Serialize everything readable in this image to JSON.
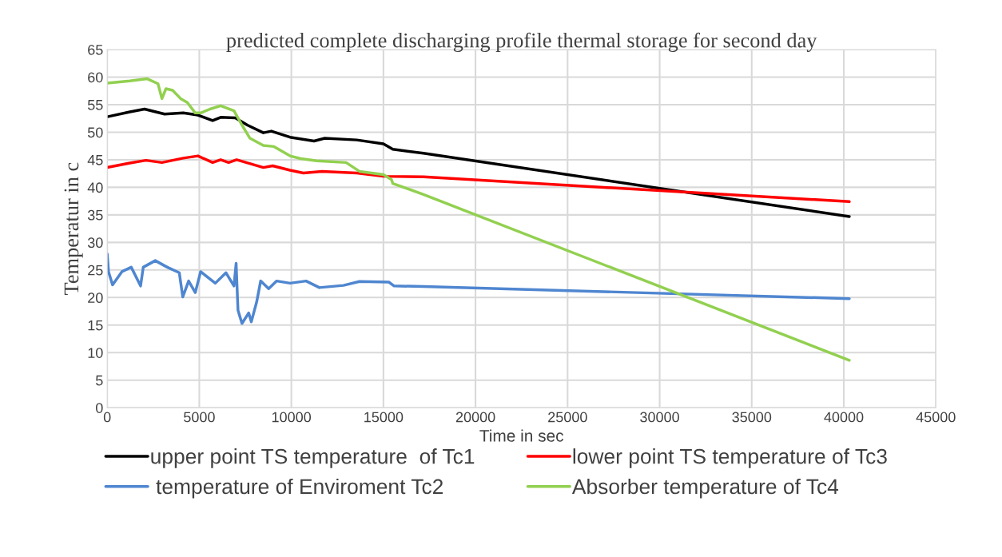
{
  "chart_data": {
    "type": "line",
    "title": "predicted complete discharging profile thermal storage for second day",
    "xlabel": "Time in sec",
    "ylabel": "Temperatur in c",
    "xlim": [
      0,
      45000
    ],
    "xticks": [
      0,
      5000,
      10000,
      15000,
      20000,
      25000,
      30000,
      35000,
      40000,
      45000
    ],
    "ylim": [
      0,
      65
    ],
    "yticks": [
      0,
      5,
      10,
      15,
      20,
      25,
      30,
      35,
      40,
      45,
      50,
      55,
      60,
      65
    ],
    "grid": true,
    "legend": "bottom",
    "marker": "none",
    "line_style": "solid",
    "series": [
      {
        "name": "upper point TS temperature  of Tc1",
        "color": "#000000",
        "x": [
          0,
          1232,
          2029,
          3116,
          4131,
          4928,
          5725,
          6160,
          6957,
          7609,
          8478,
          8913,
          9928,
          11233,
          11813,
          13552,
          15000,
          15509,
          17176,
          40300
        ],
        "values": [
          52.8,
          53.7,
          54.2,
          53.3,
          53.5,
          53.1,
          52.1,
          52.7,
          52.6,
          51.3,
          49.9,
          50.2,
          49.1,
          48.4,
          48.9,
          48.6,
          47.9,
          46.9,
          46.2,
          34.7
        ]
      },
      {
        "name": " temperature of Enviroment Tc2",
        "color": "#4f86d0",
        "x": [
          0,
          72,
          290,
          798,
          1305,
          1812,
          1957,
          2610,
          3262,
          3914,
          4102,
          4421,
          4783,
          5073,
          5870,
          6450,
          6884,
          7000,
          7102,
          7319,
          7682,
          7826,
          8116,
          8333,
          8768,
          9203,
          9928,
          10798,
          11523,
          12827,
          13697,
          15292,
          15581,
          17176,
          40300
        ],
        "values": [
          27.9,
          24.7,
          22.3,
          24.7,
          25.5,
          22.1,
          25.5,
          26.7,
          25.5,
          24.5,
          20.1,
          23.0,
          20.9,
          24.7,
          22.6,
          24.5,
          22.1,
          26.2,
          17.7,
          15.3,
          17.2,
          15.6,
          19.2,
          23.0,
          21.6,
          23.0,
          22.6,
          23.0,
          21.8,
          22.2,
          22.9,
          22.8,
          22.1,
          22.0,
          19.8
        ]
      },
      {
        "name": "lower point TS temperature of Tc3",
        "color": "#ff0000",
        "x": [
          0,
          1232,
          2102,
          2972,
          4131,
          4928,
          5725,
          6160,
          6594,
          7029,
          8478,
          8986,
          9928,
          10653,
          11668,
          13552,
          15000,
          17176,
          40300
        ],
        "values": [
          43.6,
          44.4,
          44.9,
          44.5,
          45.3,
          45.7,
          44.5,
          45.0,
          44.5,
          45.0,
          43.6,
          43.9,
          43.1,
          42.6,
          42.9,
          42.6,
          42.0,
          41.9,
          37.4
        ]
      },
      {
        "name": "Absorber temperature of Tc4",
        "color": "#92d050",
        "x": [
          0,
          1232,
          2174,
          2756,
          2972,
          3190,
          3550,
          3986,
          4350,
          4783,
          5073,
          5580,
          6160,
          6884,
          7319,
          7754,
          8478,
          9058,
          9928,
          10508,
          11378,
          12972,
          13697,
          15000,
          15437,
          15509,
          17176,
          40300
        ],
        "values": [
          58.9,
          59.3,
          59.7,
          58.8,
          56.1,
          57.9,
          57.6,
          56.1,
          55.4,
          53.5,
          53.5,
          54.2,
          54.8,
          53.9,
          51.3,
          48.9,
          47.6,
          47.4,
          45.7,
          45.2,
          44.8,
          44.5,
          42.9,
          42.3,
          41.4,
          40.7,
          38.7,
          8.6
        ]
      }
    ]
  }
}
